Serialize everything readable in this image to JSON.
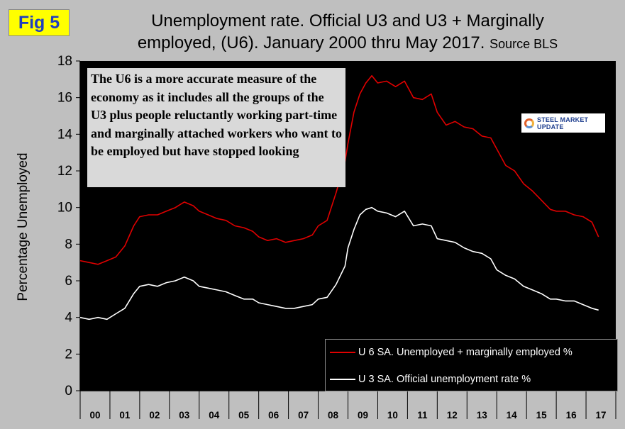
{
  "badge": "Fig 5",
  "title_line1": "Unemployment rate. Official U3 and U3 + Marginally",
  "title_line2": "employed, (U6). January 2000 thru May 2017.",
  "title_source": "Source BLS",
  "note_text": "The U6 is a more accurate measure of the economy as it includes all the groups of the U3 plus people reluctantly working part-time and marginally attached workers who want to be employed but have stopped looking",
  "logo_text": "STEEL MARKET UPDATE",
  "colors": {
    "u6": "#e00000",
    "u3": "#ffffff",
    "plot_bg": "#000000",
    "page_bg": "#bfbfbf"
  },
  "chart_data": {
    "type": "line",
    "ylabel": "Percentage Unemployed",
    "xlabel": "",
    "ylim": [
      0,
      18
    ],
    "yticks": [
      0,
      2,
      4,
      6,
      8,
      10,
      12,
      14,
      16,
      18
    ],
    "xlim": [
      2000,
      2018
    ],
    "x_tick_labels": [
      "00",
      "01",
      "02",
      "03",
      "04",
      "05",
      "06",
      "07",
      "08",
      "09",
      "10",
      "11",
      "12",
      "13",
      "14",
      "15",
      "16",
      "17"
    ],
    "grid": false,
    "legend_position": "bottom-right",
    "series": [
      {
        "name": "U 6 SA. Unemployed + marginally employed %",
        "color": "#e00000",
        "x": [
          2000.0,
          2000.3,
          2000.6,
          2000.9,
          2001.2,
          2001.5,
          2001.8,
          2002.0,
          2002.3,
          2002.6,
          2002.9,
          2003.2,
          2003.5,
          2003.8,
          2004.0,
          2004.3,
          2004.6,
          2004.9,
          2005.2,
          2005.5,
          2005.8,
          2006.0,
          2006.3,
          2006.6,
          2006.9,
          2007.2,
          2007.5,
          2007.8,
          2008.0,
          2008.3,
          2008.6,
          2008.9,
          2009.0,
          2009.2,
          2009.4,
          2009.6,
          2009.8,
          2010.0,
          2010.3,
          2010.6,
          2010.9,
          2011.2,
          2011.5,
          2011.8,
          2012.0,
          2012.3,
          2012.6,
          2012.9,
          2013.2,
          2013.5,
          2013.8,
          2014.0,
          2014.3,
          2014.6,
          2014.9,
          2015.2,
          2015.5,
          2015.8,
          2016.0,
          2016.3,
          2016.6,
          2016.9,
          2017.2,
          2017.42
        ],
        "values": [
          7.1,
          7.0,
          6.9,
          7.1,
          7.3,
          7.9,
          9.0,
          9.5,
          9.6,
          9.6,
          9.8,
          10.0,
          10.3,
          10.1,
          9.8,
          9.6,
          9.4,
          9.3,
          9.0,
          8.9,
          8.7,
          8.4,
          8.2,
          8.3,
          8.1,
          8.2,
          8.3,
          8.5,
          9.0,
          9.3,
          10.8,
          12.5,
          13.5,
          15.2,
          16.2,
          16.8,
          17.2,
          16.8,
          16.9,
          16.6,
          16.9,
          16.0,
          15.9,
          16.2,
          15.2,
          14.5,
          14.7,
          14.4,
          14.3,
          13.9,
          13.8,
          13.2,
          12.3,
          12.0,
          11.3,
          10.9,
          10.4,
          9.9,
          9.8,
          9.8,
          9.6,
          9.5,
          9.2,
          8.4
        ]
      },
      {
        "name": "U 3 SA. Official unemployment rate %",
        "color": "#ffffff",
        "x": [
          2000.0,
          2000.3,
          2000.6,
          2000.9,
          2001.2,
          2001.5,
          2001.8,
          2002.0,
          2002.3,
          2002.6,
          2002.9,
          2003.2,
          2003.5,
          2003.8,
          2004.0,
          2004.3,
          2004.6,
          2004.9,
          2005.2,
          2005.5,
          2005.8,
          2006.0,
          2006.3,
          2006.6,
          2006.9,
          2007.2,
          2007.5,
          2007.8,
          2008.0,
          2008.3,
          2008.6,
          2008.9,
          2009.0,
          2009.2,
          2009.4,
          2009.6,
          2009.8,
          2010.0,
          2010.3,
          2010.6,
          2010.9,
          2011.2,
          2011.5,
          2011.8,
          2012.0,
          2012.3,
          2012.6,
          2012.9,
          2013.2,
          2013.5,
          2013.8,
          2014.0,
          2014.3,
          2014.6,
          2014.9,
          2015.2,
          2015.5,
          2015.8,
          2016.0,
          2016.3,
          2016.6,
          2016.9,
          2017.2,
          2017.42
        ],
        "values": [
          4.0,
          3.9,
          4.0,
          3.9,
          4.2,
          4.5,
          5.3,
          5.7,
          5.8,
          5.7,
          5.9,
          6.0,
          6.2,
          6.0,
          5.7,
          5.6,
          5.5,
          5.4,
          5.2,
          5.0,
          5.0,
          4.8,
          4.7,
          4.6,
          4.5,
          4.5,
          4.6,
          4.7,
          5.0,
          5.1,
          5.8,
          6.8,
          7.8,
          8.8,
          9.6,
          9.9,
          10.0,
          9.8,
          9.7,
          9.5,
          9.8,
          9.0,
          9.1,
          9.0,
          8.3,
          8.2,
          8.1,
          7.8,
          7.6,
          7.5,
          7.2,
          6.6,
          6.3,
          6.1,
          5.7,
          5.5,
          5.3,
          5.0,
          5.0,
          4.9,
          4.9,
          4.7,
          4.5,
          4.4
        ]
      }
    ]
  }
}
